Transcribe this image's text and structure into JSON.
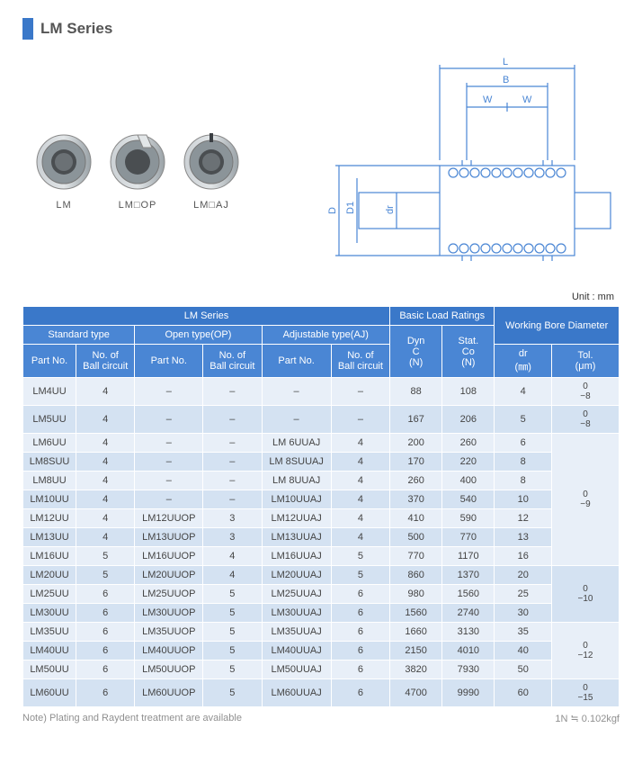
{
  "title": "LM Series",
  "product_labels": [
    "LM",
    "LM□OP",
    "LM□AJ"
  ],
  "diagram_labels": {
    "L": "L",
    "B": "B",
    "W": "W",
    "D": "D",
    "D1": "D1",
    "dr": "dr"
  },
  "colors": {
    "primary": "#3a78c9",
    "header_sub": "#4a86d4",
    "row_lt": "#e8eff8",
    "row_dk": "#d4e2f2",
    "bushing": "#b8bec2",
    "bushing_dark": "#8b9499",
    "diag_line": "#4a86d4"
  },
  "unit": "Unit : mm",
  "headers": {
    "lm": "LM Series",
    "blr": "Basic Load Ratings",
    "wbd": "Working Bore Diameter",
    "std": "Standard type",
    "open": "Open type(OP)",
    "adj": "Adjustable type(AJ)",
    "dyn": "Dyn C (N)",
    "stat": "Stat. Co (N)",
    "part": "Part No.",
    "nbc": "No. of Ball circuit",
    "dr": "dr (㎜)",
    "tol": "Tol. (μm)"
  },
  "tol_groups": [
    {
      "start": 0,
      "end": 0,
      "val": "0\n−8"
    },
    {
      "start": 1,
      "end": 1,
      "val": "0\n−8"
    },
    {
      "start": 2,
      "end": 8,
      "val": "0\n−9"
    },
    {
      "start": 9,
      "end": 11,
      "val": "0\n−10"
    },
    {
      "start": 12,
      "end": 14,
      "val": "0\n−12"
    },
    {
      "start": 15,
      "end": 15,
      "val": "0\n−15"
    }
  ],
  "rows": [
    {
      "std": "LM4UU",
      "sn": "4",
      "op": "–",
      "on": "–",
      "aj": "–",
      "an": "–",
      "c": "88",
      "co": "108",
      "dr": "4"
    },
    {
      "std": "LM5UU",
      "sn": "4",
      "op": "–",
      "on": "–",
      "aj": "–",
      "an": "–",
      "c": "167",
      "co": "206",
      "dr": "5"
    },
    {
      "std": "LM6UU",
      "sn": "4",
      "op": "–",
      "on": "–",
      "aj": "LM  6UUAJ",
      "an": "4",
      "c": "200",
      "co": "260",
      "dr": "6"
    },
    {
      "std": "LM8SUU",
      "sn": "4",
      "op": "–",
      "on": "–",
      "aj": "LM 8SUUAJ",
      "an": "4",
      "c": "170",
      "co": "220",
      "dr": "8"
    },
    {
      "std": "LM8UU",
      "sn": "4",
      "op": "–",
      "on": "–",
      "aj": "LM  8UUAJ",
      "an": "4",
      "c": "260",
      "co": "400",
      "dr": "8"
    },
    {
      "std": "LM10UU",
      "sn": "4",
      "op": "–",
      "on": "–",
      "aj": "LM10UUAJ",
      "an": "4",
      "c": "370",
      "co": "540",
      "dr": "10"
    },
    {
      "std": "LM12UU",
      "sn": "4",
      "op": "LM12UUOP",
      "on": "3",
      "aj": "LM12UUAJ",
      "an": "4",
      "c": "410",
      "co": "590",
      "dr": "12"
    },
    {
      "std": "LM13UU",
      "sn": "4",
      "op": "LM13UUOP",
      "on": "3",
      "aj": "LM13UUAJ",
      "an": "4",
      "c": "500",
      "co": "770",
      "dr": "13"
    },
    {
      "std": "LM16UU",
      "sn": "5",
      "op": "LM16UUOP",
      "on": "4",
      "aj": "LM16UUAJ",
      "an": "5",
      "c": "770",
      "co": "1170",
      "dr": "16"
    },
    {
      "std": "LM20UU",
      "sn": "5",
      "op": "LM20UUOP",
      "on": "4",
      "aj": "LM20UUAJ",
      "an": "5",
      "c": "860",
      "co": "1370",
      "dr": "20"
    },
    {
      "std": "LM25UU",
      "sn": "6",
      "op": "LM25UUOP",
      "on": "5",
      "aj": "LM25UUAJ",
      "an": "6",
      "c": "980",
      "co": "1560",
      "dr": "25"
    },
    {
      "std": "LM30UU",
      "sn": "6",
      "op": "LM30UUOP",
      "on": "5",
      "aj": "LM30UUAJ",
      "an": "6",
      "c": "1560",
      "co": "2740",
      "dr": "30"
    },
    {
      "std": "LM35UU",
      "sn": "6",
      "op": "LM35UUOP",
      "on": "5",
      "aj": "LM35UUAJ",
      "an": "6",
      "c": "1660",
      "co": "3130",
      "dr": "35"
    },
    {
      "std": "LM40UU",
      "sn": "6",
      "op": "LM40UUOP",
      "on": "5",
      "aj": "LM40UUAJ",
      "an": "6",
      "c": "2150",
      "co": "4010",
      "dr": "40"
    },
    {
      "std": "LM50UU",
      "sn": "6",
      "op": "LM50UUOP",
      "on": "5",
      "aj": "LM50UUAJ",
      "an": "6",
      "c": "3820",
      "co": "7930",
      "dr": "50"
    },
    {
      "std": "LM60UU",
      "sn": "6",
      "op": "LM60UUOP",
      "on": "5",
      "aj": "LM60UUAJ",
      "an": "6",
      "c": "4700",
      "co": "9990",
      "dr": "60"
    }
  ],
  "note_left": "Note) Plating and Raydent treatment are available",
  "note_right": "1N ≒ 0.102kgf"
}
